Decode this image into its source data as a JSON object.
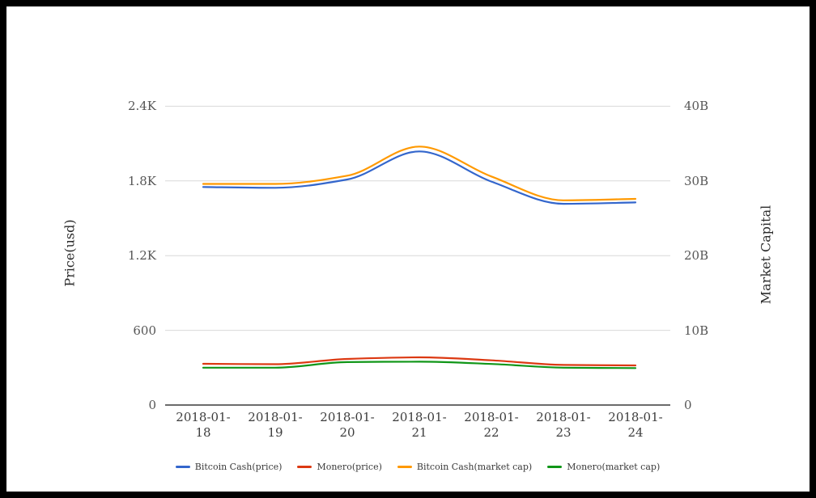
{
  "frame": {
    "border_color": "#000000",
    "background": "#ffffff"
  },
  "chart_data": {
    "type": "line",
    "x": [
      "2018-01-18",
      "2018-01-19",
      "2018-01-20",
      "2018-01-21",
      "2018-01-22",
      "2018-01-23",
      "2018-01-24"
    ],
    "series": [
      {
        "name": "Bitcoin Cash(price)",
        "axis": "left",
        "color": "#3366cc",
        "unit": "usd",
        "values": [
          1751,
          1745,
          1812,
          2037,
          1795,
          1616,
          1627
        ]
      },
      {
        "name": "Monero(price)",
        "axis": "left",
        "color": "#dc3912",
        "unit": "usd",
        "values": [
          331,
          328,
          370,
          383,
          359,
          322,
          318
        ]
      },
      {
        "name": "Bitcoin Cash(market cap)",
        "axis": "right",
        "color": "#ff9900",
        "unit": "billion usd",
        "values": [
          29.6,
          29.6,
          30.7,
          34.6,
          30.6,
          27.4,
          27.6
        ]
      },
      {
        "name": "Monero(market cap)",
        "axis": "right",
        "color": "#109618",
        "unit": "billion usd",
        "values": [
          5.0,
          5.0,
          5.75,
          5.8,
          5.5,
          5.0,
          4.95
        ]
      }
    ],
    "left_axis": {
      "label": "Price(usd)",
      "ticks": [
        "0",
        "600",
        "1.2K",
        "1.8K",
        "2.4K"
      ],
      "max": 2400
    },
    "right_axis": {
      "label": "Market Capital",
      "ticks": [
        "0",
        "10B",
        "20B",
        "30B",
        "40B"
      ],
      "max": 40
    },
    "grid": {
      "horizontal": true,
      "vertical": false
    },
    "legend_position": "bottom",
    "colors": {
      "gridline": "#d9d9d9",
      "baseline": "#3a3a3a",
      "tick_text": "#565656",
      "date_text": "#3d3d3d"
    }
  }
}
